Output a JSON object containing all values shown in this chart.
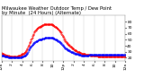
{
  "title_line1": "Milwaukee Weather Outdoor Temp / Dew Point",
  "title_line2": "by Minute  (24 Hours) (Alternate)",
  "background_color": "#ffffff",
  "grid_color": "#cccccc",
  "temp_color": "#ff0000",
  "dew_color": "#0000ff",
  "ylim": [
    15,
    90
  ],
  "xlim": [
    0,
    1440
  ],
  "temp_values": [
    28,
    27,
    27,
    26,
    26,
    25,
    25,
    25,
    24,
    24,
    24,
    23,
    23,
    23,
    23,
    22,
    22,
    22,
    22,
    22,
    22,
    22,
    22,
    22,
    22,
    22,
    22,
    22,
    22,
    22,
    22,
    22,
    22,
    23,
    23,
    23,
    24,
    24,
    25,
    25,
    26,
    26,
    27,
    27,
    28,
    28,
    29,
    30,
    31,
    32,
    34,
    36,
    38,
    40,
    42,
    44,
    46,
    48,
    50,
    52,
    54,
    56,
    58,
    60,
    62,
    64,
    65,
    66,
    67,
    68,
    69,
    70,
    70,
    71,
    71,
    72,
    72,
    73,
    73,
    73,
    74,
    74,
    74,
    75,
    75,
    75,
    75,
    75,
    76,
    76,
    76,
    76,
    76,
    76,
    76,
    76,
    75,
    75,
    75,
    75,
    74,
    74,
    74,
    73,
    73,
    72,
    72,
    71,
    70,
    70,
    69,
    68,
    67,
    66,
    65,
    64,
    63,
    62,
    60,
    58,
    57,
    55,
    53,
    51,
    50,
    48,
    47,
    46,
    45,
    44,
    43,
    42,
    42,
    41,
    40,
    39,
    38,
    38,
    37,
    36,
    35,
    35,
    34,
    33,
    33,
    32,
    32,
    31,
    31,
    30,
    30,
    29,
    29,
    29,
    28,
    28,
    28,
    27,
    27,
    27,
    26,
    26,
    26,
    26,
    26,
    25,
    25,
    25,
    25,
    25,
    25,
    25,
    25,
    25,
    24,
    24,
    24,
    24,
    24,
    24,
    23,
    23,
    23,
    23,
    23,
    23,
    23,
    23,
    23,
    22,
    22,
    22,
    22,
    22,
    22,
    22,
    22,
    22,
    22,
    22,
    22,
    22,
    22,
    22,
    22,
    22,
    22,
    22,
    22,
    22,
    22,
    22,
    22,
    22,
    22,
    22,
    22,
    22,
    22,
    22,
    22,
    22,
    22,
    22,
    22,
    22,
    22,
    22,
    22,
    22,
    22,
    22,
    22,
    22,
    22,
    22,
    22,
    22,
    22,
    22,
    22,
    22,
    22,
    22
  ],
  "dew_values": [
    24,
    24,
    23,
    23,
    23,
    23,
    22,
    22,
    22,
    22,
    22,
    22,
    22,
    21,
    21,
    21,
    21,
    21,
    21,
    21,
    21,
    21,
    21,
    21,
    21,
    21,
    21,
    21,
    21,
    21,
    21,
    21,
    21,
    21,
    21,
    21,
    21,
    21,
    21,
    21,
    22,
    22,
    22,
    22,
    23,
    23,
    24,
    24,
    25,
    26,
    27,
    28,
    30,
    32,
    34,
    36,
    37,
    38,
    39,
    40,
    41,
    42,
    43,
    44,
    45,
    46,
    46,
    47,
    47,
    48,
    48,
    49,
    49,
    50,
    50,
    50,
    51,
    51,
    51,
    51,
    52,
    52,
    52,
    52,
    52,
    53,
    53,
    53,
    53,
    53,
    53,
    53,
    53,
    53,
    54,
    54,
    54,
    53,
    53,
    53,
    53,
    53,
    52,
    52,
    52,
    51,
    51,
    50,
    50,
    49,
    49,
    48,
    48,
    47,
    46,
    46,
    45,
    44,
    43,
    42,
    41,
    40,
    39,
    38,
    37,
    36,
    35,
    35,
    34,
    34,
    33,
    33,
    32,
    32,
    31,
    31,
    30,
    30,
    30,
    29,
    29,
    28,
    28,
    28,
    27,
    27,
    27,
    26,
    26,
    26,
    26,
    25,
    25,
    25,
    25,
    25,
    24,
    24,
    24,
    24,
    24,
    24,
    24,
    24,
    24,
    24,
    24,
    24,
    24,
    24,
    24,
    24,
    25,
    25,
    25,
    25,
    25,
    25,
    25,
    25,
    25,
    25,
    25,
    25,
    25,
    25,
    25,
    25,
    25,
    25,
    25,
    25,
    25,
    25,
    25,
    25,
    25,
    25,
    25,
    25,
    25,
    25,
    25,
    25,
    25,
    25,
    25,
    25,
    25,
    25,
    25,
    25,
    25,
    25,
    25,
    25,
    25,
    25,
    25,
    25,
    25,
    25,
    25,
    25,
    25,
    25,
    25,
    25,
    25,
    25,
    25,
    25,
    25,
    25,
    25,
    25,
    25,
    25,
    25,
    25,
    25,
    25,
    25,
    25
  ],
  "ytick_labels": [
    "20",
    "30",
    "40",
    "50",
    "60",
    "70",
    "80"
  ],
  "ytick_values": [
    20,
    30,
    40,
    50,
    60,
    70,
    80
  ],
  "xtick_positions": [
    0,
    120,
    240,
    360,
    480,
    600,
    720,
    840,
    960,
    1080,
    1200,
    1320,
    1440
  ],
  "xtick_labels": [
    "12a",
    "2",
    "4",
    "6",
    "8",
    "10",
    "12p",
    "2",
    "4",
    "6",
    "8",
    "10",
    "12a"
  ],
  "title_fontsize": 3.8,
  "tick_fontsize": 3.2,
  "marker_size": 0.8
}
